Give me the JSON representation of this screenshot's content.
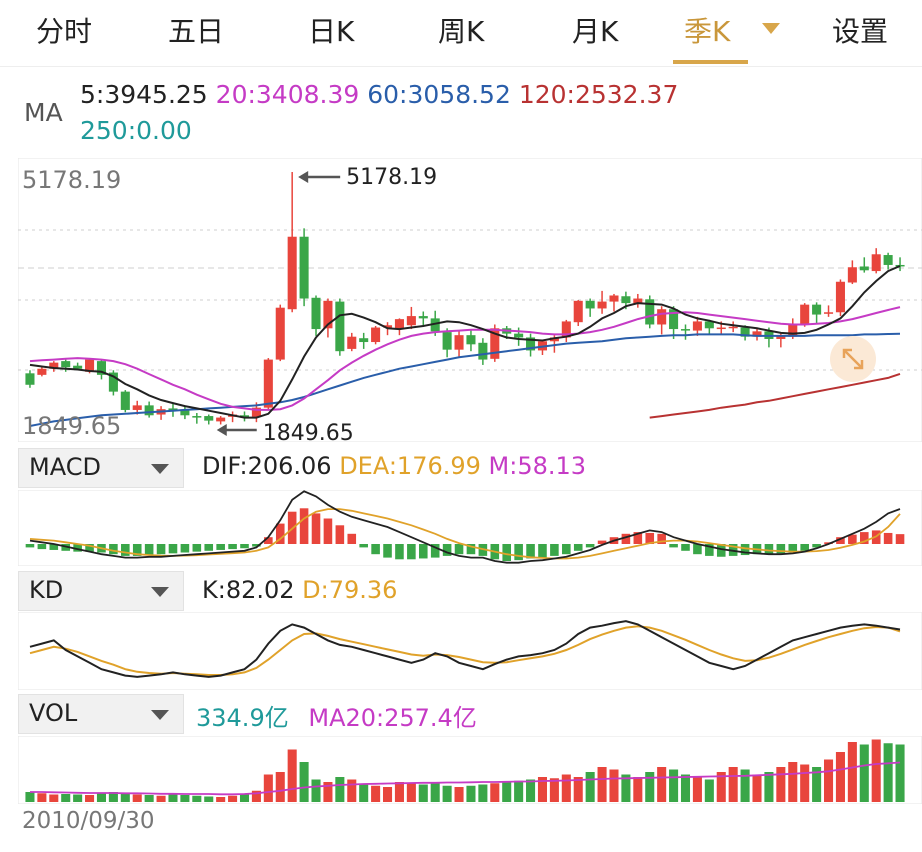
{
  "tabs": [
    {
      "label": "分时"
    },
    {
      "label": "五日"
    },
    {
      "label": "日K"
    },
    {
      "label": "周K"
    },
    {
      "label": "月K"
    },
    {
      "label": "季K"
    },
    {
      "label": "设置"
    }
  ],
  "active_tab": "季K",
  "ma": {
    "label": "MA",
    "ma5": "5:3945.25",
    "ma20": "20:3408.39",
    "ma60": "60:3058.52",
    "ma120": "120:2532.37",
    "ma250": "250:0.00"
  },
  "main_chart": {
    "high_label": "5178.19",
    "low_label": "1849.65",
    "high_marker": "5178.19",
    "low_marker": "1849.65"
  },
  "macd": {
    "label": "MACD",
    "dif": "DIF:206.06",
    "dea": "DEA:176.99",
    "m": "M:58.13"
  },
  "kd": {
    "label": "KD",
    "k": "K:82.02",
    "d": "D:79.36"
  },
  "vol": {
    "label": "VOL",
    "value": "334.9亿",
    "ma20": "MA20:257.4亿"
  },
  "dates": {
    "start": "2010/09/30"
  },
  "colors": {
    "up": "#e8453c",
    "down": "#3aa648",
    "accent": "#d8a64a",
    "ma5": "#222222",
    "ma20": "#c53bc5",
    "ma60": "#2a5eaa",
    "ma120": "#b83232",
    "ma250": "#1f9a9a"
  },
  "icons": {
    "dropdown": "caret-down-icon",
    "expand": "expand-arrows-icon",
    "marker": "arrow-left-icon"
  },
  "chart_data": {
    "type": "candlestick",
    "y_range": [
      1849.65,
      5178.19
    ],
    "candles": [
      [
        2540,
        2390,
        2580,
        2350
      ],
      [
        2520,
        2600,
        2630,
        2500
      ],
      [
        2600,
        2680,
        2700,
        2560
      ],
      [
        2700,
        2620,
        2720,
        2560
      ],
      [
        2640,
        2600,
        2680,
        2580
      ],
      [
        2560,
        2720,
        2740,
        2540
      ],
      [
        2700,
        2520,
        2720,
        2460
      ],
      [
        2550,
        2300,
        2580,
        2250
      ],
      [
        2300,
        2060,
        2320,
        2030
      ],
      [
        2060,
        2120,
        2180,
        2000
      ],
      [
        2120,
        1990,
        2170,
        1960
      ],
      [
        2000,
        2070,
        2110,
        1930
      ],
      [
        2080,
        2050,
        2150,
        1970
      ],
      [
        2060,
        1990,
        2120,
        1940
      ],
      [
        1980,
        1960,
        2020,
        1880
      ],
      [
        1980,
        1920,
        2000,
        1870
      ],
      [
        1910,
        1960,
        1980,
        1870
      ],
      [
        1970,
        2000,
        2040,
        1900
      ],
      [
        1990,
        1960,
        2040,
        1910
      ],
      [
        1970,
        2090,
        2160,
        1900
      ],
      [
        2090,
        2720,
        2740,
        2060
      ],
      [
        2720,
        3400,
        3440,
        2700
      ],
      [
        3380,
        4330,
        5178,
        3340
      ],
      [
        4330,
        3520,
        4440,
        3420
      ],
      [
        3530,
        3120,
        3560,
        3030
      ],
      [
        3130,
        3490,
        3520,
        3010
      ],
      [
        3480,
        2830,
        3520,
        2770
      ],
      [
        2860,
        3020,
        3070,
        2830
      ],
      [
        3000,
        2950,
        3070,
        2860
      ],
      [
        2950,
        3140,
        3160,
        2920
      ],
      [
        3140,
        3170,
        3210,
        3040
      ],
      [
        3120,
        3250,
        3260,
        3040
      ],
      [
        3170,
        3290,
        3410,
        3120
      ],
      [
        3290,
        3260,
        3350,
        3150
      ],
      [
        3260,
        3090,
        3360,
        3030
      ],
      [
        3080,
        2850,
        3130,
        2750
      ],
      [
        2850,
        3040,
        3100,
        2760
      ],
      [
        3040,
        2920,
        3110,
        2830
      ],
      [
        2940,
        2720,
        3000,
        2650
      ],
      [
        2730,
        3130,
        3180,
        2690
      ],
      [
        3130,
        3060,
        3160,
        2990
      ],
      [
        3060,
        3010,
        3140,
        2900
      ],
      [
        3010,
        2840,
        3060,
        2760
      ],
      [
        2840,
        2960,
        2980,
        2780
      ],
      [
        2960,
        3010,
        3040,
        2810
      ],
      [
        3010,
        3220,
        3240,
        2950
      ],
      [
        3210,
        3490,
        3500,
        3160
      ],
      [
        3490,
        3390,
        3520,
        3280
      ],
      [
        3390,
        3480,
        3620,
        3320
      ],
      [
        3480,
        3560,
        3580,
        3350
      ],
      [
        3550,
        3460,
        3610,
        3380
      ],
      [
        3460,
        3520,
        3580,
        3400
      ],
      [
        3510,
        3180,
        3560,
        3130
      ],
      [
        3180,
        3380,
        3420,
        3050
      ],
      [
        3380,
        3120,
        3420,
        2990
      ],
      [
        3120,
        3100,
        3180,
        2980
      ],
      [
        3100,
        3220,
        3280,
        3030
      ],
      [
        3220,
        3130,
        3240,
        3060
      ],
      [
        3120,
        3140,
        3220,
        3050
      ],
      [
        3140,
        3150,
        3220,
        3080
      ],
      [
        3140,
        3020,
        3170,
        2970
      ],
      [
        3020,
        3090,
        3140,
        2970
      ],
      [
        3090,
        2990,
        3140,
        2880
      ],
      [
        2990,
        3030,
        3060,
        2880
      ],
      [
        3020,
        3180,
        3260,
        2990
      ],
      [
        3180,
        3440,
        3460,
        3150
      ],
      [
        3440,
        3310,
        3470,
        3200
      ],
      [
        3320,
        3340,
        3430,
        3280
      ],
      [
        3340,
        3740,
        3770,
        3290
      ],
      [
        3730,
        3930,
        4020,
        3710
      ],
      [
        3940,
        3890,
        4060,
        3860
      ],
      [
        3880,
        4100,
        4180,
        3850
      ],
      [
        4090,
        3960,
        4120,
        3900
      ],
      [
        3960,
        3946,
        4060,
        3880
      ]
    ],
    "ma5": [
      2650,
      2630,
      2610,
      2600,
      2590,
      2570,
      2560,
      2500,
      2400,
      2330,
      2250,
      2190,
      2150,
      2110,
      2080,
      2050,
      2020,
      1990,
      1960,
      1960,
      2010,
      2180,
      2460,
      2760,
      3010,
      3180,
      3300,
      3320,
      3270,
      3210,
      3130,
      3120,
      3140,
      3160,
      3190,
      3220,
      3210,
      3170,
      3120,
      3060,
      3010,
      2990,
      2980,
      2970,
      3000,
      3020,
      3060,
      3150,
      3260,
      3330,
      3420,
      3460,
      3450,
      3440,
      3390,
      3310,
      3260,
      3230,
      3190,
      3170,
      3150,
      3130,
      3100,
      3070,
      3060,
      3070,
      3110,
      3180,
      3260,
      3420,
      3600,
      3750,
      3880,
      3946
    ],
    "ma20": [
      2700,
      2710,
      2720,
      2730,
      2740,
      2730,
      2720,
      2700,
      2660,
      2600,
      2530,
      2460,
      2390,
      2330,
      2260,
      2200,
      2140,
      2100,
      2080,
      2060,
      2060,
      2070,
      2120,
      2210,
      2330,
      2450,
      2580,
      2680,
      2770,
      2850,
      2920,
      2980,
      3030,
      3060,
      3080,
      3090,
      3100,
      3110,
      3110,
      3110,
      3100,
      3090,
      3080,
      3060,
      3050,
      3050,
      3060,
      3080,
      3110,
      3150,
      3200,
      3250,
      3290,
      3320,
      3330,
      3340,
      3330,
      3310,
      3290,
      3270,
      3250,
      3230,
      3210,
      3190,
      3180,
      3180,
      3190,
      3200,
      3220,
      3250,
      3290,
      3330,
      3370,
      3408
    ],
    "ma60": [
      1850,
      1880,
      1910,
      1930,
      1950,
      1970,
      1990,
      2000,
      2010,
      2020,
      2030,
      2040,
      2050,
      2060,
      2070,
      2080,
      2090,
      2100,
      2110,
      2120,
      2140,
      2160,
      2190,
      2230,
      2280,
      2330,
      2380,
      2430,
      2480,
      2520,
      2560,
      2600,
      2630,
      2660,
      2690,
      2720,
      2750,
      2770,
      2790,
      2810,
      2830,
      2850,
      2870,
      2890,
      2910,
      2930,
      2940,
      2950,
      2960,
      2980,
      3000,
      3010,
      3020,
      3030,
      3040,
      3040,
      3050,
      3050,
      3050,
      3050,
      3040,
      3030,
      3030,
      3030,
      3030,
      3030,
      3040,
      3040,
      3040,
      3040,
      3050,
      3050,
      3055,
      3058
    ],
    "ma120_start_index": 52,
    "ma120": [
      1960,
      1980,
      2000,
      2020,
      2040,
      2060,
      2090,
      2110,
      2130,
      2160,
      2180,
      2210,
      2240,
      2270,
      2300,
      2330,
      2360,
      2390,
      2420,
      2450,
      2480,
      2532
    ],
    "macd_hist": [
      -20,
      -30,
      -35,
      -40,
      -45,
      -45,
      -50,
      -60,
      -70,
      -70,
      -65,
      -60,
      -55,
      -50,
      -45,
      -40,
      -35,
      -30,
      -25,
      -15,
      40,
      120,
      190,
      210,
      180,
      150,
      110,
      60,
      -20,
      -60,
      -80,
      -90,
      -90,
      -85,
      -80,
      -70,
      -60,
      -60,
      -70,
      -90,
      -100,
      -95,
      -85,
      -80,
      -70,
      -60,
      -40,
      -20,
      20,
      40,
      60,
      70,
      65,
      60,
      -20,
      -40,
      -60,
      -70,
      -75,
      -70,
      -65,
      -60,
      -60,
      -55,
      -50,
      -40,
      -20,
      10,
      40,
      55,
      70,
      80,
      65,
      58
    ],
    "macd_dif": [
      20,
      10,
      0,
      -15,
      -30,
      -45,
      -60,
      -70,
      -80,
      -80,
      -75,
      -75,
      -70,
      -65,
      -60,
      -55,
      -50,
      -45,
      -40,
      -20,
      40,
      140,
      260,
      310,
      280,
      230,
      190,
      160,
      140,
      120,
      100,
      70,
      40,
      10,
      -20,
      -50,
      -70,
      -80,
      -80,
      -100,
      -110,
      -110,
      -100,
      -95,
      -85,
      -75,
      -55,
      -35,
      -5,
      20,
      40,
      60,
      80,
      70,
      40,
      20,
      0,
      -15,
      -30,
      -40,
      -50,
      -55,
      -60,
      -60,
      -55,
      -45,
      -25,
      0,
      30,
      60,
      90,
      130,
      180,
      206
    ],
    "macd_dea": [
      30,
      25,
      20,
      10,
      0,
      -10,
      -25,
      -40,
      -50,
      -60,
      -65,
      -68,
      -70,
      -68,
      -66,
      -62,
      -58,
      -54,
      -50,
      -40,
      -20,
      30,
      90,
      150,
      190,
      205,
      205,
      195,
      180,
      165,
      150,
      130,
      110,
      85,
      60,
      30,
      5,
      -15,
      -30,
      -45,
      -60,
      -70,
      -78,
      -82,
      -85,
      -85,
      -80,
      -70,
      -55,
      -40,
      -25,
      -10,
      5,
      15,
      20,
      20,
      15,
      5,
      -5,
      -15,
      -25,
      -32,
      -38,
      -42,
      -45,
      -45,
      -42,
      -35,
      -22,
      -5,
      15,
      45,
      100,
      177
    ],
    "kd_k": [
      55,
      60,
      65,
      50,
      40,
      30,
      20,
      15,
      10,
      8,
      10,
      12,
      15,
      12,
      10,
      8,
      10,
      15,
      20,
      35,
      60,
      80,
      90,
      85,
      75,
      65,
      58,
      55,
      50,
      45,
      40,
      35,
      30,
      35,
      45,
      40,
      30,
      25,
      20,
      28,
      35,
      40,
      42,
      45,
      50,
      60,
      75,
      85,
      88,
      92,
      95,
      90,
      80,
      70,
      60,
      50,
      40,
      30,
      25,
      20,
      25,
      35,
      45,
      55,
      65,
      70,
      75,
      80,
      85,
      88,
      90,
      88,
      85,
      82
    ],
    "kd_d": [
      45,
      50,
      55,
      52,
      47,
      40,
      33,
      27,
      20,
      16,
      14,
      13,
      14,
      13,
      12,
      11,
      11,
      12,
      15,
      22,
      35,
      50,
      65,
      75,
      76,
      72,
      67,
      63,
      59,
      55,
      51,
      47,
      43,
      41,
      43,
      42,
      39,
      35,
      31,
      30,
      31,
      34,
      37,
      40,
      44,
      50,
      58,
      67,
      74,
      80,
      85,
      87,
      85,
      80,
      73,
      66,
      58,
      50,
      43,
      37,
      33,
      34,
      38,
      44,
      51,
      58,
      64,
      70,
      75,
      80,
      84,
      86,
      85,
      79
    ],
    "volume": [
      40,
      35,
      30,
      32,
      30,
      28,
      35,
      40,
      38,
      30,
      28,
      25,
      30,
      28,
      25,
      22,
      20,
      25,
      30,
      45,
      110,
      120,
      210,
      160,
      90,
      80,
      100,
      90,
      70,
      65,
      60,
      80,
      75,
      70,
      80,
      65,
      60,
      65,
      70,
      75,
      80,
      85,
      90,
      100,
      95,
      110,
      100,
      120,
      140,
      130,
      110,
      100,
      120,
      140,
      130,
      110,
      100,
      90,
      120,
      140,
      130,
      110,
      120,
      140,
      160,
      150,
      140,
      170,
      200,
      240,
      230,
      250,
      235,
      230
    ],
    "vol_ma20": [
      40,
      40,
      39,
      38,
      37,
      36,
      36,
      36,
      35,
      35,
      34,
      33,
      33,
      32,
      32,
      32,
      31,
      31,
      32,
      35,
      40,
      45,
      52,
      58,
      62,
      65,
      68,
      70,
      72,
      73,
      74,
      75,
      76,
      77,
      77,
      78,
      78,
      79,
      80,
      80,
      81,
      82,
      82,
      84,
      85,
      86,
      88,
      90,
      92,
      94,
      95,
      96,
      97,
      98,
      99,
      100,
      101,
      102,
      103,
      104,
      105,
      107,
      109,
      111,
      113,
      116,
      119,
      123,
      130,
      138,
      146,
      152,
      155,
      158
    ]
  }
}
